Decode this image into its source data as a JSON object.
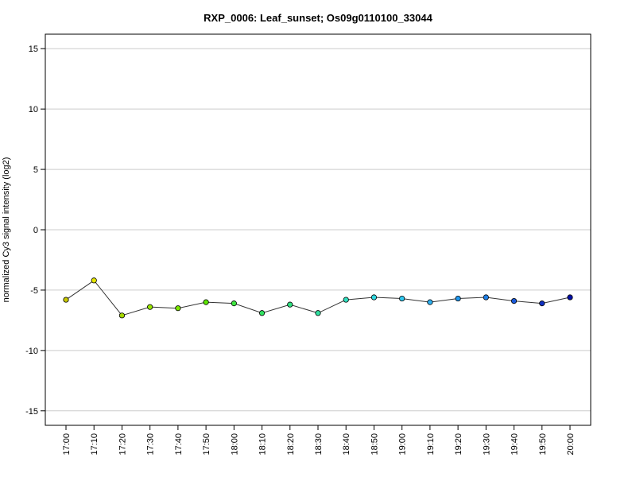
{
  "chart_data": {
    "type": "line",
    "title": "RXP_0006: Leaf_sunset; Os09g0110100_33044",
    "xlabel": "",
    "ylabel": "normalized Cy3 signal intensity (log2)",
    "ylim": [
      -16.2,
      16.2
    ],
    "yticks": [
      -15,
      -10,
      -5,
      0,
      5,
      10,
      15
    ],
    "grid": true,
    "categories": [
      "17:00",
      "17:10",
      "17:20",
      "17:30",
      "17:40",
      "17:50",
      "18:00",
      "18:10",
      "18:20",
      "18:30",
      "18:40",
      "18:50",
      "19:00",
      "19:10",
      "19:20",
      "19:30",
      "19:40",
      "19:50",
      "20:00"
    ],
    "series": [
      {
        "values": [
          -5.8,
          -4.2,
          -7.1,
          -6.4,
          -6.5,
          -6.0,
          -6.1,
          -6.9,
          -6.2,
          -6.9,
          -5.8,
          -5.6,
          -5.7,
          -6.0,
          -5.7,
          -5.6,
          -5.9,
          -6.1,
          -5.6
        ],
        "point_colors": [
          "#c8c800",
          "#e6e600",
          "#a6d800",
          "#98e600",
          "#7be600",
          "#5ce600",
          "#3fe640",
          "#30e060",
          "#30e080",
          "#30e0a0",
          "#30e0c0",
          "#30d8e0",
          "#30c8f0",
          "#30b0f0",
          "#2098f0",
          "#2080e8",
          "#1858d8",
          "#1030c0",
          "#0010a8"
        ]
      }
    ]
  }
}
